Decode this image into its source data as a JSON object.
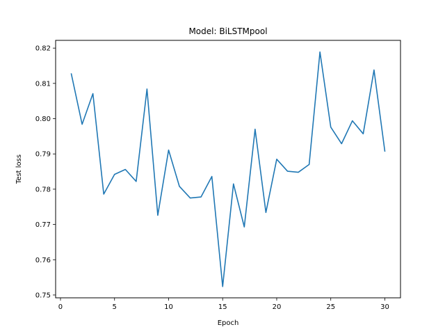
{
  "chart_data": {
    "type": "line",
    "title": "Model: BiLSTMpool",
    "xlabel": "Epoch",
    "ylabel": "Test loss",
    "xlim": [
      -0.45,
      31.45
    ],
    "ylim": [
      0.7492,
      0.8222
    ],
    "xticks": [
      0,
      5,
      10,
      15,
      20,
      25,
      30
    ],
    "yticks": [
      0.75,
      0.76,
      0.77,
      0.78,
      0.79,
      0.8,
      0.81,
      0.82
    ],
    "xtick_labels": [
      "0",
      "5",
      "10",
      "15",
      "20",
      "25",
      "30"
    ],
    "ytick_labels": [
      "0.75",
      "0.76",
      "0.77",
      "0.78",
      "0.79",
      "0.80",
      "0.81",
      "0.82"
    ],
    "grid": false,
    "line_color": "#1f77b4",
    "x": [
      1,
      2,
      3,
      4,
      5,
      6,
      7,
      8,
      9,
      10,
      11,
      12,
      13,
      14,
      15,
      16,
      17,
      18,
      19,
      20,
      21,
      22,
      23,
      24,
      25,
      26,
      27,
      28,
      29,
      30
    ],
    "y": [
      0.8127,
      0.7984,
      0.8071,
      0.7786,
      0.7842,
      0.7856,
      0.7822,
      0.8084,
      0.7726,
      0.7911,
      0.7808,
      0.7775,
      0.7778,
      0.7836,
      0.7524,
      0.7815,
      0.7693,
      0.797,
      0.7734,
      0.7885,
      0.7851,
      0.7848,
      0.787,
      0.8189,
      0.7976,
      0.7929,
      0.7994,
      0.7957,
      0.8138,
      0.7908
    ]
  }
}
